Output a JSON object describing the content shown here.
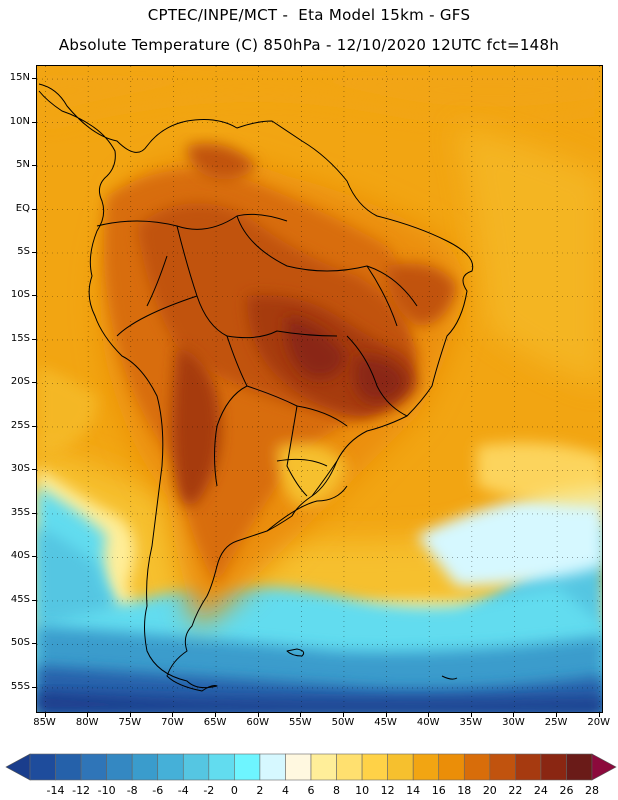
{
  "header": {
    "line1": "CPTEC/INPE/MCT -  Eta Model 15km - GFS",
    "line2": "Absolute Temperature (C) 850hPa - 12/10/2020 12UTC fct=148h"
  },
  "map": {
    "region": "South America",
    "lat_labels": [
      "15N",
      "10N",
      "5N",
      "EQ",
      "5S",
      "10S",
      "15S",
      "20S",
      "25S",
      "30S",
      "35S",
      "40S",
      "45S",
      "50S",
      "55S"
    ],
    "lat_values": [
      15,
      10,
      5,
      0,
      -5,
      -10,
      -15,
      -20,
      -25,
      -30,
      -35,
      -40,
      -45,
      -50,
      -55
    ],
    "lon_labels": [
      "85W",
      "80W",
      "75W",
      "70W",
      "65W",
      "60W",
      "55W",
      "50W",
      "45W",
      "40W",
      "35W",
      "30W",
      "25W",
      "20W"
    ],
    "lon_values": [
      -85,
      -80,
      -75,
      -70,
      -65,
      -60,
      -55,
      -50,
      -45,
      -40,
      -35,
      -30,
      -25,
      -20
    ],
    "lat_range": [
      -58,
      16.5
    ],
    "lon_range": [
      -86,
      -19.5
    ],
    "grid": "dotted"
  },
  "colorbar": {
    "labels": [
      "-14",
      "-12",
      "-10",
      "-8",
      "-6",
      "-4",
      "-2",
      "0",
      "2",
      "4",
      "6",
      "8",
      "10",
      "12",
      "14",
      "16",
      "18",
      "20",
      "22",
      "24",
      "26",
      "28"
    ],
    "colors": [
      "#1a3d8c",
      "#1e4c9c",
      "#2561aa",
      "#2f75b8",
      "#3488c2",
      "#3a9ccc",
      "#45b0d8",
      "#55c6e2",
      "#62dcef",
      "#6ef5ff",
      "#d6f8ff",
      "#fff8e0",
      "#ffee99",
      "#ffe06f",
      "#ffd247",
      "#f6c02e",
      "#f2a512",
      "#eb8e08",
      "#d86d0a",
      "#c1530e",
      "#a63a10",
      "#8a2612",
      "#6a1b18",
      "#8c0a3c"
    ]
  }
}
